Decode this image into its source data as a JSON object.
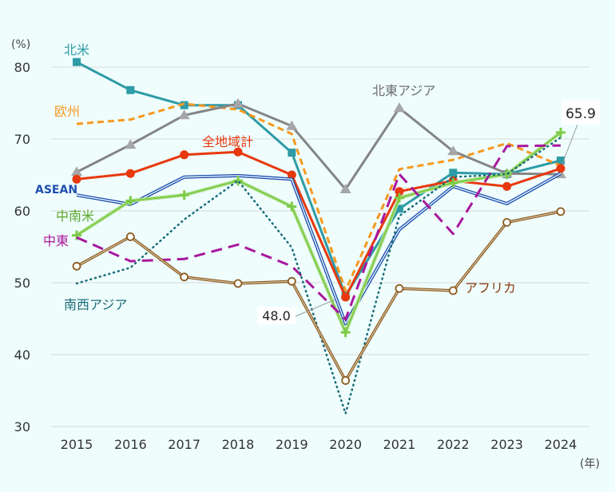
{
  "chart_data": {
    "type": "line",
    "y_unit_label": "(%)",
    "x_unit_label": "(年)",
    "ylim": [
      30,
      80
    ],
    "yticks": [
      "30",
      "40",
      "50",
      "60",
      "70",
      "80"
    ],
    "categories": [
      "2015",
      "2016",
      "2017",
      "2018",
      "2019",
      "2020",
      "2021",
      "2022",
      "2023",
      "2024"
    ],
    "grid": true,
    "series": [
      {
        "name": "北米",
        "color": "#2e9ba6",
        "style": "solid",
        "marker": "square",
        "values": [
          80.7,
          76.8,
          74.7,
          74.7,
          68.1,
          48.2,
          60.3,
          65.3,
          65.1,
          67.0
        ]
      },
      {
        "name": "欧州",
        "color": "#f7981d",
        "style": "dashed",
        "marker": "none",
        "values": [
          72.1,
          72.7,
          74.9,
          74.1,
          70.7,
          48.9,
          65.8,
          67.1,
          69.4,
          66.3
        ]
      },
      {
        "name": "北東アジア",
        "color": "#858585",
        "style": "solid",
        "marker": "triangle",
        "values": [
          65.4,
          69.2,
          73.3,
          74.9,
          71.8,
          63.0,
          74.3,
          68.3,
          65.2,
          65.1
        ]
      },
      {
        "name": "全地域計",
        "color": "#e8380d",
        "style": "solid",
        "marker": "circle",
        "values": [
          64.4,
          65.2,
          67.8,
          68.2,
          65.0,
          48.0,
          62.7,
          64.2,
          63.4,
          65.9
        ]
      },
      {
        "name": "ASEAN",
        "color": "#1f4fb0",
        "style": "double",
        "marker": "none",
        "values": [
          62.2,
          60.9,
          64.7,
          64.9,
          64.4,
          44.3,
          57.4,
          63.4,
          61.0,
          65.2
        ]
      },
      {
        "name": "中南米",
        "color": "#7ccb45",
        "style": "solid",
        "marker": "plus",
        "values": [
          56.6,
          61.4,
          62.2,
          64.2,
          60.6,
          43.1,
          61.8,
          63.9,
          65.1,
          70.9
        ]
      },
      {
        "name": "中東",
        "color": "#a8189c",
        "style": "longdash",
        "marker": "none",
        "values": [
          56.3,
          53.0,
          53.3,
          55.3,
          52.3,
          44.9,
          65.1,
          56.8,
          69.0,
          69.1
        ]
      },
      {
        "name": "南西アジア",
        "color": "#1a6b78",
        "style": "dotted",
        "marker": "none",
        "values": [
          49.9,
          52.1,
          58.8,
          64.2,
          54.9,
          31.8,
          59.3,
          64.7,
          65.1,
          70.2
        ]
      },
      {
        "name": "アフリカ",
        "color": "#8a5a1e",
        "style": "double-brown",
        "marker": "open-circle",
        "values": [
          52.3,
          56.4,
          50.8,
          49.9,
          50.2,
          36.4,
          49.2,
          48.9,
          58.4,
          59.9
        ]
      }
    ],
    "annotations": [
      "48.0",
      "65.9"
    ]
  }
}
